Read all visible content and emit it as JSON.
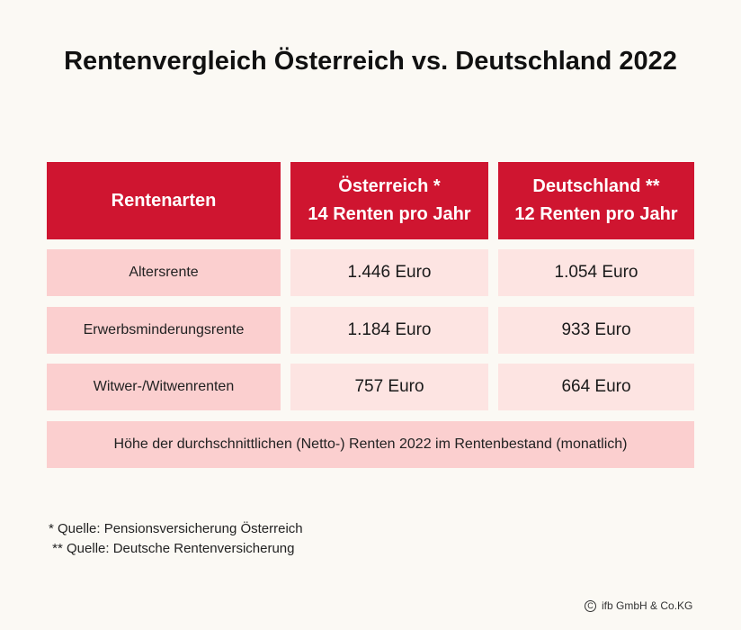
{
  "title": "Rentenvergleich Österreich vs. Deutschland 2022",
  "table": {
    "headers": [
      {
        "line1": "Rentenarten",
        "line2": ""
      },
      {
        "line1": "Österreich *",
        "line2": "14 Renten pro Jahr"
      },
      {
        "line1": "Deutschland **",
        "line2": "12 Renten pro Jahr"
      }
    ],
    "rows": [
      {
        "label": "Altersrente",
        "austria": "1.446 Euro",
        "germany": "1.054 Euro"
      },
      {
        "label": "Erwerbsminderungsrente",
        "austria": "1.184 Euro",
        "germany": "933 Euro"
      },
      {
        "label": "Witwer-/Witwenrenten",
        "austria": "757 Euro",
        "germany": "664 Euro"
      }
    ],
    "note": "Höhe der durchschnittlichen (Netto-) Renten 2022 im Rentenbestand (monatlich)"
  },
  "footnotes": [
    "* Quelle: Pensionsversicherung Österreich",
    " ** Quelle: Deutsche Rentenversicherung"
  ],
  "copyright": {
    "symbol": "C",
    "text": "ifb GmbH & Co.KG"
  }
}
